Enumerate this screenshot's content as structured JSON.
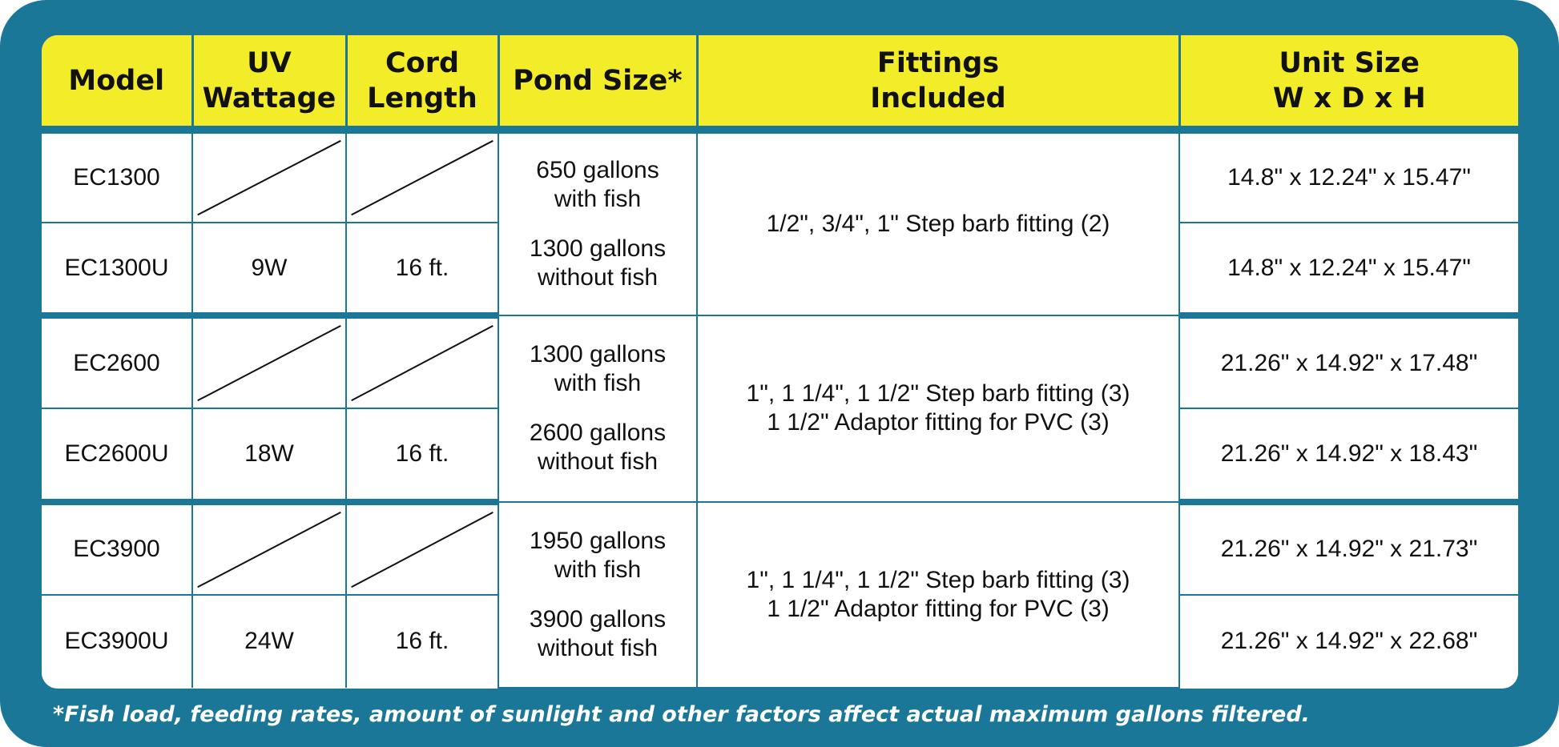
{
  "headers": {
    "model": "Model",
    "uv_line1": "UV",
    "uv_line2": "Wattage",
    "cord_line1": "Cord",
    "cord_line2": "Length",
    "pond": "Pond Size*",
    "fittings_line1": "Fittings",
    "fittings_line2": "Included",
    "unit_line1": "Unit Size",
    "unit_line2": "W x D x H"
  },
  "groups": [
    {
      "pond_with": [
        "650 gallons",
        "with fish"
      ],
      "pond_without": [
        "1300 gallons",
        "without fish"
      ],
      "fittings": [
        "1/2\", 3/4\", 1\" Step barb fitting (2)"
      ],
      "rows": [
        {
          "model": "EC1300",
          "uv": "",
          "cord": "",
          "size": "14.8\" x 12.24\" x 15.47\""
        },
        {
          "model": "EC1300U",
          "uv": "9W",
          "cord": "16 ft.",
          "size": "14.8\" x 12.24\" x 15.47\""
        }
      ]
    },
    {
      "pond_with": [
        "1300 gallons",
        "with fish"
      ],
      "pond_without": [
        "2600 gallons",
        "without fish"
      ],
      "fittings": [
        "1\", 1 1/4\", 1 1/2\" Step barb fitting (3)",
        "1 1/2\" Adaptor fitting for PVC (3)"
      ],
      "rows": [
        {
          "model": "EC2600",
          "uv": "",
          "cord": "",
          "size": "21.26\" x 14.92\" x 17.48\""
        },
        {
          "model": "EC2600U",
          "uv": "18W",
          "cord": "16 ft.",
          "size": "21.26\" x 14.92\" x 18.43\""
        }
      ]
    },
    {
      "pond_with": [
        "1950 gallons",
        "with fish"
      ],
      "pond_without": [
        "3900 gallons",
        "without fish"
      ],
      "fittings": [
        "1\", 1 1/4\", 1 1/2\" Step barb fitting (3)",
        "1 1/2\" Adaptor fitting for PVC (3)"
      ],
      "rows": [
        {
          "model": "EC3900",
          "uv": "",
          "cord": "",
          "size": "21.26\" x 14.92\" x 21.73\""
        },
        {
          "model": "EC3900U",
          "uv": "24W",
          "cord": "16 ft.",
          "size": "21.26\" x 14.92\" x 22.68\""
        }
      ]
    }
  ],
  "footnote": "*Fish load, feeding rates, amount of sunlight and other factors affect actual maximum gallons filtered.",
  "colors": {
    "frame": "#1a7797",
    "header": "#f2ec29",
    "text": "#111111"
  }
}
